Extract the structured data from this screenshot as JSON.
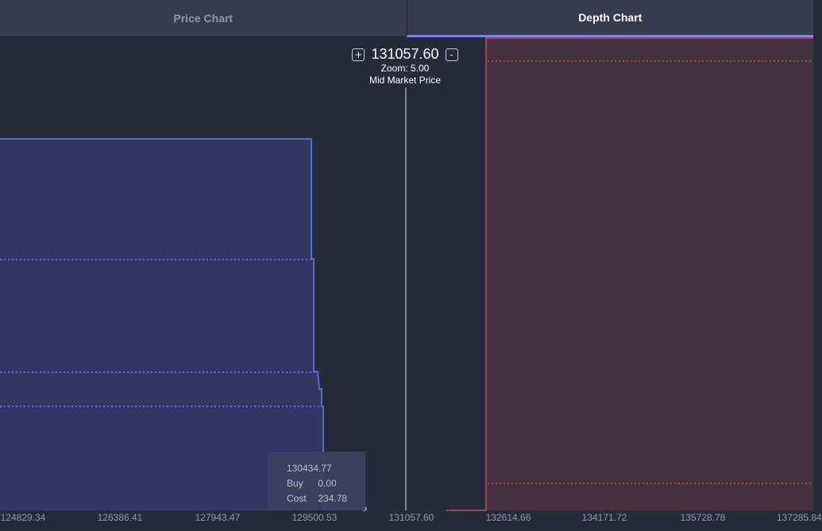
{
  "tabs": [
    {
      "label": "Price Chart",
      "active": false
    },
    {
      "label": "Depth Chart",
      "active": true
    }
  ],
  "header": {
    "mid_price": "131057.60",
    "zoom_text": "Zoom: 5.00",
    "mid_label": "Mid Market Price",
    "zoom_in_icon": "+",
    "zoom_out_icon": "-"
  },
  "tooltip": {
    "price": "130434.77",
    "buy_label": "Buy",
    "buy_value": "0.00",
    "cost_label": "Cost",
    "cost_value": "234.78"
  },
  "x_axis": {
    "ticks": [
      "124829.34",
      "126386.41",
      "127943.47",
      "129500.53",
      "131057.60",
      "132614.66",
      "134171.72",
      "135728.78",
      "137285.84"
    ]
  },
  "colors": {
    "bid": "#6f7ae6",
    "bid_fill": "#323766",
    "ask": "#d04a5c",
    "ask_fill": "#43313f",
    "background": "#262b3a"
  }
}
